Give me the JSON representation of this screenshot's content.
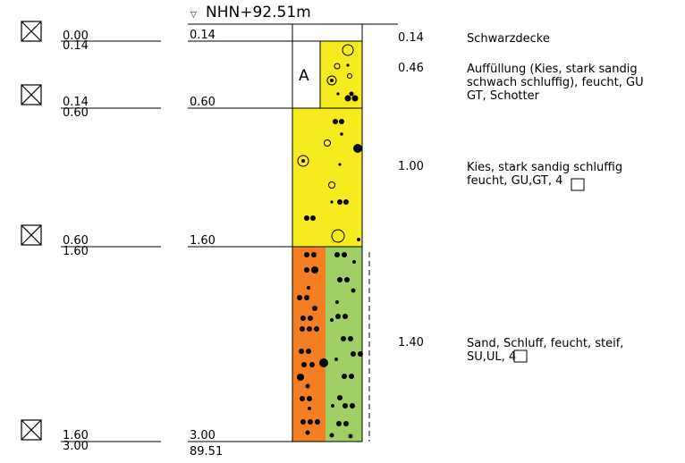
{
  "elevation": {
    "marker": "▽",
    "label": "NHN+92.51m"
  },
  "bottom_elevation": "89.51",
  "samples": [
    {
      "from": "0.00",
      "to": "0.14"
    },
    {
      "from": "0.14",
      "to": "0.60"
    },
    {
      "from": "0.60",
      "to": "1.60"
    },
    {
      "from": "1.60",
      "to": "3.00"
    }
  ],
  "depths": [
    "0.14",
    "0.60",
    "1.60",
    "3.00"
  ],
  "layers": [
    {
      "thickness": "0.14",
      "lines": [
        "Schwarzdecke"
      ]
    },
    {
      "thickness": "0.46",
      "lines": [
        "Auffüllung (Kies, stark sandig",
        "schwach schluffig), feucht, GU",
        "GT, Schotter"
      ]
    },
    {
      "thickness": "1.00",
      "lines": [
        "Kies, stark sandig schluffig",
        "feucht, GU,GT, 4"
      ]
    },
    {
      "thickness": "1.40",
      "lines": [
        "Sand, Schluff, feucht, steif,",
        "SU,UL, 4"
      ]
    }
  ],
  "fill_label": "A",
  "colors": {
    "gravel": "#f5eb1e",
    "sand": "#f37f22",
    "silt": "#9fcf65"
  }
}
